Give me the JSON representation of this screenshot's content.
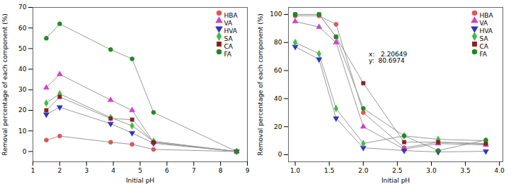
{
  "chart_data": [
    {
      "type": "line",
      "xlabel": "Initial pH",
      "ylabel": "Removal percentage of each component (%)",
      "xlim": [
        1,
        9
      ],
      "ylim": [
        -5,
        70
      ],
      "xticks": [
        1,
        2,
        3,
        4,
        5,
        6,
        7,
        8,
        9
      ],
      "yticks": [
        0,
        10,
        20,
        30,
        40,
        50,
        60,
        70
      ],
      "color": "#999999",
      "legend": "upper right",
      "x": [
        1.5,
        2.0,
        3.9,
        4.7,
        5.5,
        8.6
      ],
      "series": [
        {
          "name": "HBA",
          "color": "#e05555",
          "marker": "circle",
          "values": [
            5.5,
            7.5,
            4.5,
            3.5,
            1.0,
            0.0
          ]
        },
        {
          "name": "VA",
          "color": "#cc44cc",
          "marker": "triangle-up",
          "values": [
            31.0,
            37.5,
            25.0,
            20.0,
            4.5,
            0.0
          ]
        },
        {
          "name": "HVA",
          "color": "#3333bb",
          "marker": "triangle-down",
          "values": [
            18.0,
            21.5,
            13.5,
            9.0,
            4.0,
            0.0
          ]
        },
        {
          "name": "SA",
          "color": "#44bb44",
          "marker": "diamond",
          "values": [
            23.5,
            28.0,
            16.5,
            12.5,
            5.0,
            0.0
          ]
        },
        {
          "name": "CA",
          "color": "#882222",
          "marker": "square",
          "values": [
            20.0,
            26.5,
            16.0,
            15.5,
            4.5,
            0.0
          ]
        },
        {
          "name": "FA",
          "color": "#228822",
          "marker": "circle",
          "values": [
            55.0,
            62.0,
            49.5,
            45.0,
            19.0,
            0.0
          ]
        }
      ]
    },
    {
      "type": "line",
      "xlabel": "Initial pH",
      "ylabel": "Removal percentage of each component (%)",
      "xlim": [
        0.9,
        4.05
      ],
      "ylim": [
        -5,
        105
      ],
      "xticks": [
        {
          "value": 1,
          "label": "1.0"
        },
        1.5,
        {
          "value": 2,
          "label": "2.0"
        },
        2.5,
        {
          "value": 3,
          "label": "3.0"
        },
        3.5,
        {
          "value": 4,
          "label": "4.0"
        }
      ],
      "yticks": [
        0,
        20,
        40,
        60,
        80,
        100
      ],
      "color": "#999999",
      "legend": "upper right",
      "annotations": [
        {
          "x": 2.05,
          "y": 75,
          "text": "x:   2.20649\ny:  80.6974"
        }
      ],
      "x": [
        1.0,
        1.35,
        1.6,
        2.0,
        2.6,
        3.1,
        3.8
      ],
      "series": [
        {
          "name": "HBA",
          "color": "#e05555",
          "marker": "circle",
          "values": [
            99.0,
            99.0,
            93.0,
            30.0,
            5.0,
            9.0,
            7.5
          ]
        },
        {
          "name": "VA",
          "color": "#cc44cc",
          "marker": "triangle-up",
          "values": [
            95.0,
            91.0,
            80.0,
            20.0,
            4.0,
            8.0,
            7.0
          ]
        },
        {
          "name": "HVA",
          "color": "#3333bb",
          "marker": "triangle-down",
          "values": [
            77.0,
            68.0,
            26.0,
            5.0,
            3.0,
            2.0,
            2.5
          ]
        },
        {
          "name": "SA",
          "color": "#44bb44",
          "marker": "diamond",
          "values": [
            80.0,
            72.0,
            33.0,
            8.0,
            13.5,
            11.0,
            10.0
          ]
        },
        {
          "name": "CA",
          "color": "#882222",
          "marker": "square",
          "values": [
            100.0,
            100.0,
            84.0,
            51.0,
            9.0,
            9.0,
            8.0
          ]
        },
        {
          "name": "FA",
          "color": "#228822",
          "marker": "circle",
          "values": [
            100.0,
            100.0,
            84.0,
            33.0,
            13.5,
            3.0,
            10.5
          ]
        }
      ]
    }
  ]
}
